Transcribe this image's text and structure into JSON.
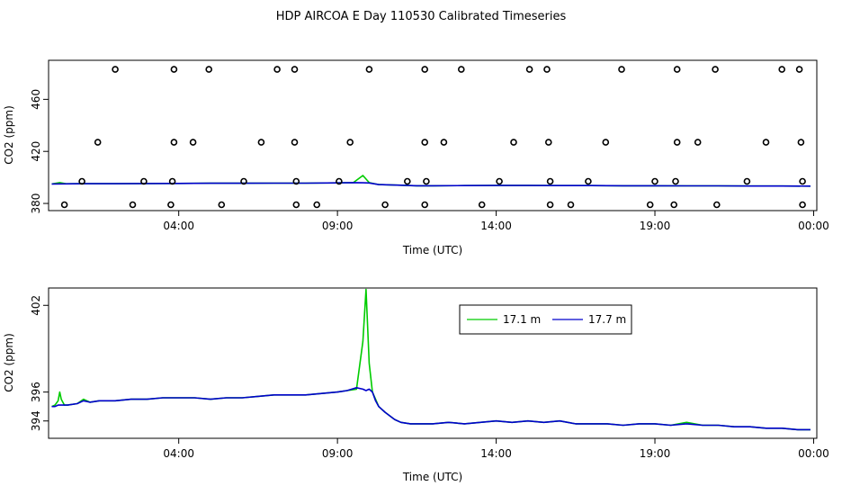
{
  "figure": {
    "title": "HDP AIRCOA E  Day 110530  Calibrated Timeseries"
  },
  "chart_data": [
    {
      "type": "scatter",
      "xlabel": "Time (UTC)",
      "ylabel": "CO2 (ppm)",
      "xlim": [
        -0.1,
        24.1
      ],
      "ylim": [
        374.5,
        490
      ],
      "x_ticks": [
        {
          "value": 4,
          "label": "04:00"
        },
        {
          "value": 9,
          "label": "09:00"
        },
        {
          "value": 14,
          "label": "14:00"
        },
        {
          "value": 19,
          "label": "19:00"
        },
        {
          "value": 24,
          "label": "00:00"
        }
      ],
      "y_ticks": [
        {
          "value": 380,
          "label": "380"
        },
        {
          "value": 420,
          "label": "420"
        },
        {
          "value": 460,
          "label": "460"
        }
      ],
      "scatter_points": {
        "description": "calibration standard measurements",
        "x": [
          2.0,
          3.85,
          4.95,
          7.1,
          7.65,
          10.0,
          11.75,
          12.9,
          15.05,
          15.6,
          17.95,
          19.7,
          20.9,
          23.0,
          23.55,
          1.45,
          3.85,
          4.45,
          6.6,
          7.65,
          9.4,
          11.75,
          12.35,
          14.55,
          15.65,
          17.45,
          19.7,
          20.35,
          22.5,
          23.6,
          0.95,
          2.9,
          3.8,
          6.05,
          7.7,
          9.05,
          11.2,
          11.8,
          14.1,
          15.7,
          16.9,
          19.0,
          19.65,
          21.9,
          23.65,
          0.4,
          2.55,
          3.75,
          5.35,
          7.7,
          8.35,
          10.5,
          11.75,
          13.55,
          15.7,
          16.35,
          18.85,
          19.6,
          20.95,
          23.65
        ],
        "y": [
          483,
          483,
          483,
          483,
          483,
          483,
          483,
          483,
          483,
          483,
          483,
          483,
          483,
          483,
          483,
          427,
          427,
          427,
          427,
          427,
          427,
          427,
          427,
          427,
          427,
          427,
          427,
          427,
          427,
          427,
          397,
          397,
          397,
          397,
          397,
          397,
          397,
          397,
          397,
          397,
          397,
          397,
          397,
          397,
          397,
          379,
          379,
          379,
          379,
          379,
          379,
          379,
          379,
          379,
          379,
          379,
          379,
          379,
          379,
          379
        ]
      },
      "series": [
        {
          "color": "#00cc00",
          "x": [
            0,
            0.25,
            0.45,
            1.0,
            2.0,
            3.0,
            4.0,
            5.0,
            6.0,
            7.0,
            8.0,
            9.0,
            9.5,
            9.8,
            10.0,
            10.3,
            11.0,
            11.5,
            12.0,
            13.0,
            14.0,
            15.0,
            16.0,
            17.0,
            18.0,
            19.0,
            20.0,
            21.0,
            22.0,
            23.0,
            23.9
          ],
          "y": [
            395,
            396,
            395.1,
            395.2,
            395.2,
            395.3,
            395.4,
            395.5,
            395.5,
            395.6,
            395.6,
            395.8,
            396.0,
            401.5,
            396.0,
            394.5,
            394.0,
            393.6,
            393.6,
            393.7,
            393.8,
            393.8,
            393.7,
            393.7,
            393.6,
            393.6,
            393.5,
            393.5,
            393.4,
            393.4,
            393.3
          ]
        },
        {
          "color": "#0000cc",
          "x": [
            0,
            1.0,
            2.0,
            3.0,
            4.0,
            5.0,
            6.0,
            7.0,
            8.0,
            9.0,
            9.5,
            9.8,
            10.0,
            10.3,
            11.0,
            11.5,
            12.0,
            13.0,
            14.0,
            15.0,
            16.0,
            17.0,
            18.0,
            19.0,
            20.0,
            21.0,
            22.0,
            23.0,
            23.9
          ],
          "y": [
            395,
            395.2,
            395.2,
            395.3,
            395.4,
            395.5,
            395.5,
            395.6,
            395.6,
            395.8,
            396.0,
            395.9,
            395.7,
            394.5,
            394.0,
            393.6,
            393.6,
            393.7,
            393.8,
            393.8,
            393.7,
            393.7,
            393.6,
            393.6,
            393.5,
            393.5,
            393.4,
            393.4,
            393.3
          ]
        }
      ]
    },
    {
      "type": "line",
      "xlabel": "Time (UTC)",
      "ylabel": "CO2 (ppm)",
      "xlim": [
        -0.1,
        24.1
      ],
      "ylim": [
        392.8,
        403.2
      ],
      "x_ticks": [
        {
          "value": 4,
          "label": "04:00"
        },
        {
          "value": 9,
          "label": "09:00"
        },
        {
          "value": 14,
          "label": "14:00"
        },
        {
          "value": 19,
          "label": "19:00"
        },
        {
          "value": 24,
          "label": "00:00"
        }
      ],
      "y_ticks": [
        {
          "value": 394,
          "label": "394"
        },
        {
          "value": 396,
          "label": "396"
        },
        {
          "value": 402,
          "label": "402"
        }
      ],
      "legend": {
        "placement": "top-right-inside"
      },
      "series": [
        {
          "name": "17.1 m",
          "color": "#00cc00",
          "x": [
            0.0,
            0.1,
            0.2,
            0.25,
            0.3,
            0.4,
            0.5,
            0.8,
            1.0,
            1.2,
            1.5,
            2.0,
            2.5,
            3.0,
            3.5,
            4.0,
            4.5,
            5.0,
            5.5,
            6.0,
            6.5,
            7.0,
            7.5,
            8.0,
            8.5,
            9.0,
            9.3,
            9.6,
            9.8,
            9.9,
            10.0,
            10.1,
            10.2,
            10.3,
            10.5,
            10.8,
            11.0,
            11.3,
            11.6,
            12.0,
            12.5,
            13.0,
            13.5,
            14.0,
            14.5,
            15.0,
            15.5,
            16.0,
            16.5,
            17.0,
            17.5,
            18.0,
            18.5,
            19.0,
            19.5,
            20.0,
            20.5,
            21.0,
            21.5,
            22.0,
            22.5,
            23.0,
            23.5,
            23.9
          ],
          "y": [
            395.0,
            395.1,
            395.4,
            396.0,
            395.5,
            395.1,
            395.1,
            395.2,
            395.5,
            395.3,
            395.4,
            395.4,
            395.5,
            395.5,
            395.6,
            395.6,
            395.6,
            395.5,
            395.6,
            395.6,
            395.7,
            395.8,
            395.8,
            395.8,
            395.9,
            396.0,
            396.1,
            396.2,
            399.5,
            403.1,
            398.0,
            396.0,
            395.5,
            395.0,
            394.6,
            394.1,
            393.9,
            393.8,
            393.8,
            393.8,
            393.9,
            393.8,
            393.9,
            394.0,
            393.9,
            394.0,
            393.9,
            394.0,
            393.8,
            393.8,
            393.8,
            393.7,
            393.8,
            393.8,
            393.7,
            393.9,
            393.7,
            393.7,
            393.6,
            393.6,
            393.5,
            393.5,
            393.4,
            393.4
          ]
        },
        {
          "name": "17.7 m",
          "color": "#0000cc",
          "x": [
            0.0,
            0.1,
            0.2,
            0.25,
            0.3,
            0.4,
            0.5,
            0.8,
            1.0,
            1.2,
            1.5,
            2.0,
            2.5,
            3.0,
            3.5,
            4.0,
            4.5,
            5.0,
            5.5,
            6.0,
            6.5,
            7.0,
            7.5,
            8.0,
            8.5,
            9.0,
            9.3,
            9.6,
            9.8,
            9.9,
            10.0,
            10.1,
            10.2,
            10.3,
            10.5,
            10.8,
            11.0,
            11.3,
            11.6,
            12.0,
            12.5,
            13.0,
            13.5,
            14.0,
            14.5,
            15.0,
            15.5,
            16.0,
            16.5,
            17.0,
            17.5,
            18.0,
            18.5,
            19.0,
            19.5,
            20.0,
            20.5,
            21.0,
            21.5,
            22.0,
            22.5,
            23.0,
            23.5,
            23.9
          ],
          "y": [
            395.0,
            395.0,
            395.1,
            395.1,
            395.1,
            395.1,
            395.1,
            395.2,
            395.4,
            395.3,
            395.4,
            395.4,
            395.5,
            395.5,
            395.6,
            395.6,
            395.6,
            395.5,
            395.6,
            395.6,
            395.7,
            395.8,
            395.8,
            395.8,
            395.9,
            396.0,
            396.1,
            396.3,
            396.2,
            396.1,
            396.2,
            396.0,
            395.4,
            395.0,
            394.6,
            394.1,
            393.9,
            393.8,
            393.8,
            393.8,
            393.9,
            393.8,
            393.9,
            394.0,
            393.9,
            394.0,
            393.9,
            394.0,
            393.8,
            393.8,
            393.8,
            393.7,
            393.8,
            393.8,
            393.7,
            393.8,
            393.7,
            393.7,
            393.6,
            393.6,
            393.5,
            393.5,
            393.4,
            393.4
          ]
        }
      ]
    }
  ]
}
